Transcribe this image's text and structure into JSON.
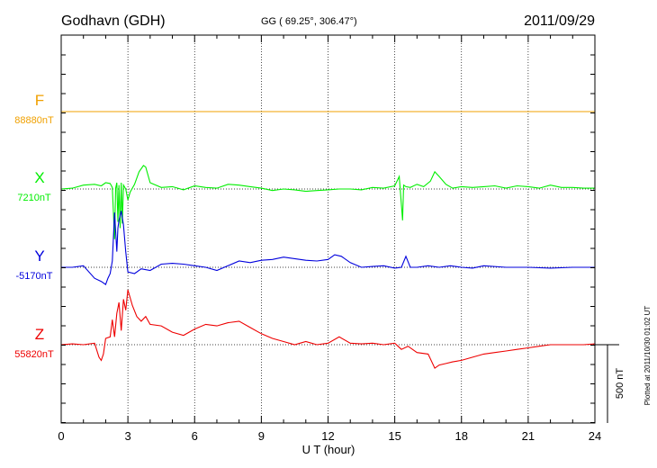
{
  "header": {
    "station": "Godhavn (GDH)",
    "coords": "GG ( 69.25°, 306.47°)",
    "date": "2011/09/29"
  },
  "plotted_note": "Plotted at 2011/10/30 01:02 UT",
  "scale_label": "500 nT",
  "colors": {
    "F": "#f0a000",
    "X": "#00ee00",
    "Y": "#0000dd",
    "Z": "#ee0000"
  },
  "chart_data": {
    "type": "line",
    "xlabel": "U T (hour)",
    "xlim": [
      0,
      24
    ],
    "xticks": [
      0,
      3,
      6,
      9,
      12,
      15,
      18,
      21,
      24
    ],
    "scale_bar_nT": 500,
    "series": [
      {
        "name": "F",
        "baseline_label": "88880nT",
        "x": [
          0,
          24
        ],
        "y": [
          0,
          0
        ]
      },
      {
        "name": "X",
        "baseline_label": "7210nT",
        "x": [
          0,
          0.5,
          1.0,
          1.5,
          1.8,
          2.0,
          2.2,
          2.3,
          2.4,
          2.45,
          2.5,
          2.55,
          2.6,
          2.65,
          2.7,
          2.75,
          2.8,
          2.9,
          3.0,
          3.1,
          3.3,
          3.5,
          3.7,
          3.8,
          4.0,
          4.5,
          5.0,
          5.5,
          6.0,
          6.5,
          7.0,
          7.5,
          8.0,
          8.5,
          9.0,
          9.5,
          10.0,
          10.5,
          11.0,
          11.5,
          12.0,
          12.5,
          13.0,
          13.5,
          14.0,
          14.5,
          15.0,
          15.2,
          15.3,
          15.35,
          15.4,
          15.5,
          15.7,
          16.0,
          16.3,
          16.6,
          16.8,
          17.0,
          17.3,
          17.6,
          18.0,
          18.5,
          19.0,
          19.5,
          20.0,
          20.5,
          21.0,
          21.5,
          22.0,
          22.5,
          23.0,
          23.5,
          24.0
        ],
        "y": [
          0,
          5,
          25,
          30,
          20,
          40,
          35,
          10,
          -320,
          5,
          40,
          -210,
          25,
          -250,
          40,
          -220,
          25,
          0,
          -70,
          -20,
          30,
          110,
          150,
          140,
          40,
          10,
          15,
          -5,
          20,
          10,
          5,
          30,
          25,
          15,
          5,
          -10,
          0,
          -5,
          -15,
          -10,
          -5,
          0,
          0,
          -5,
          10,
          5,
          20,
          80,
          -100,
          -200,
          25,
          15,
          10,
          30,
          15,
          50,
          110,
          80,
          30,
          5,
          15,
          10,
          15,
          20,
          5,
          20,
          15,
          5,
          25,
          10,
          10,
          5,
          5
        ]
      },
      {
        "name": "Y",
        "baseline_label": "-5170nT",
        "x": [
          0,
          0.5,
          1.0,
          1.5,
          1.8,
          2.0,
          2.1,
          2.2,
          2.3,
          2.4,
          2.5,
          2.55,
          2.6,
          2.7,
          2.8,
          2.9,
          3.0,
          3.3,
          3.6,
          4.0,
          4.5,
          5.0,
          5.5,
          6.0,
          6.5,
          7.0,
          7.5,
          8.0,
          8.5,
          9.0,
          9.5,
          10.0,
          10.5,
          11.0,
          11.5,
          12.0,
          12.3,
          12.6,
          13.0,
          13.5,
          14.0,
          14.5,
          15.0,
          15.3,
          15.5,
          15.7,
          16.0,
          16.5,
          17.0,
          17.5,
          18.0,
          18.5,
          19.0,
          20.0,
          21.0,
          22.0,
          23.0,
          24.0
        ],
        "y": [
          0,
          0,
          10,
          -70,
          -90,
          -110,
          -70,
          -40,
          40,
          350,
          100,
          250,
          300,
          360,
          270,
          100,
          -30,
          -40,
          -10,
          -20,
          20,
          25,
          20,
          10,
          0,
          -20,
          10,
          40,
          30,
          45,
          50,
          65,
          55,
          45,
          40,
          50,
          80,
          70,
          30,
          0,
          5,
          10,
          -5,
          0,
          70,
          0,
          0,
          10,
          0,
          10,
          0,
          -5,
          10,
          0,
          0,
          -5,
          0,
          0
        ]
      },
      {
        "name": "Z",
        "baseline_label": "55820nT",
        "x": [
          0,
          0.5,
          1.0,
          1.5,
          1.7,
          1.8,
          1.9,
          2.0,
          2.2,
          2.3,
          2.4,
          2.5,
          2.6,
          2.7,
          2.8,
          2.9,
          3.0,
          3.2,
          3.4,
          3.6,
          3.8,
          4.0,
          4.5,
          5.0,
          5.5,
          6.0,
          6.5,
          7.0,
          7.5,
          8.0,
          8.5,
          9.0,
          9.5,
          10.0,
          10.5,
          11.0,
          11.5,
          12.0,
          12.5,
          13.0,
          13.5,
          14.0,
          14.5,
          15.0,
          15.3,
          15.6,
          16.0,
          16.5,
          16.8,
          17.0,
          17.3,
          17.6,
          18.0,
          18.5,
          19.0,
          19.5,
          20.0,
          20.5,
          21.0,
          21.5,
          22.0,
          22.5,
          23.0,
          23.5,
          24.0
        ],
        "y": [
          0,
          5,
          0,
          10,
          -80,
          -100,
          -60,
          40,
          50,
          160,
          50,
          200,
          270,
          90,
          290,
          220,
          350,
          250,
          180,
          150,
          180,
          130,
          120,
          80,
          60,
          100,
          130,
          120,
          140,
          150,
          110,
          70,
          40,
          20,
          0,
          20,
          0,
          10,
          50,
          10,
          5,
          10,
          0,
          10,
          -30,
          -10,
          -50,
          -60,
          -150,
          -130,
          -120,
          -110,
          -100,
          -80,
          -60,
          -50,
          -40,
          -30,
          -20,
          -10,
          0,
          0,
          0,
          0,
          5
        ]
      }
    ]
  }
}
